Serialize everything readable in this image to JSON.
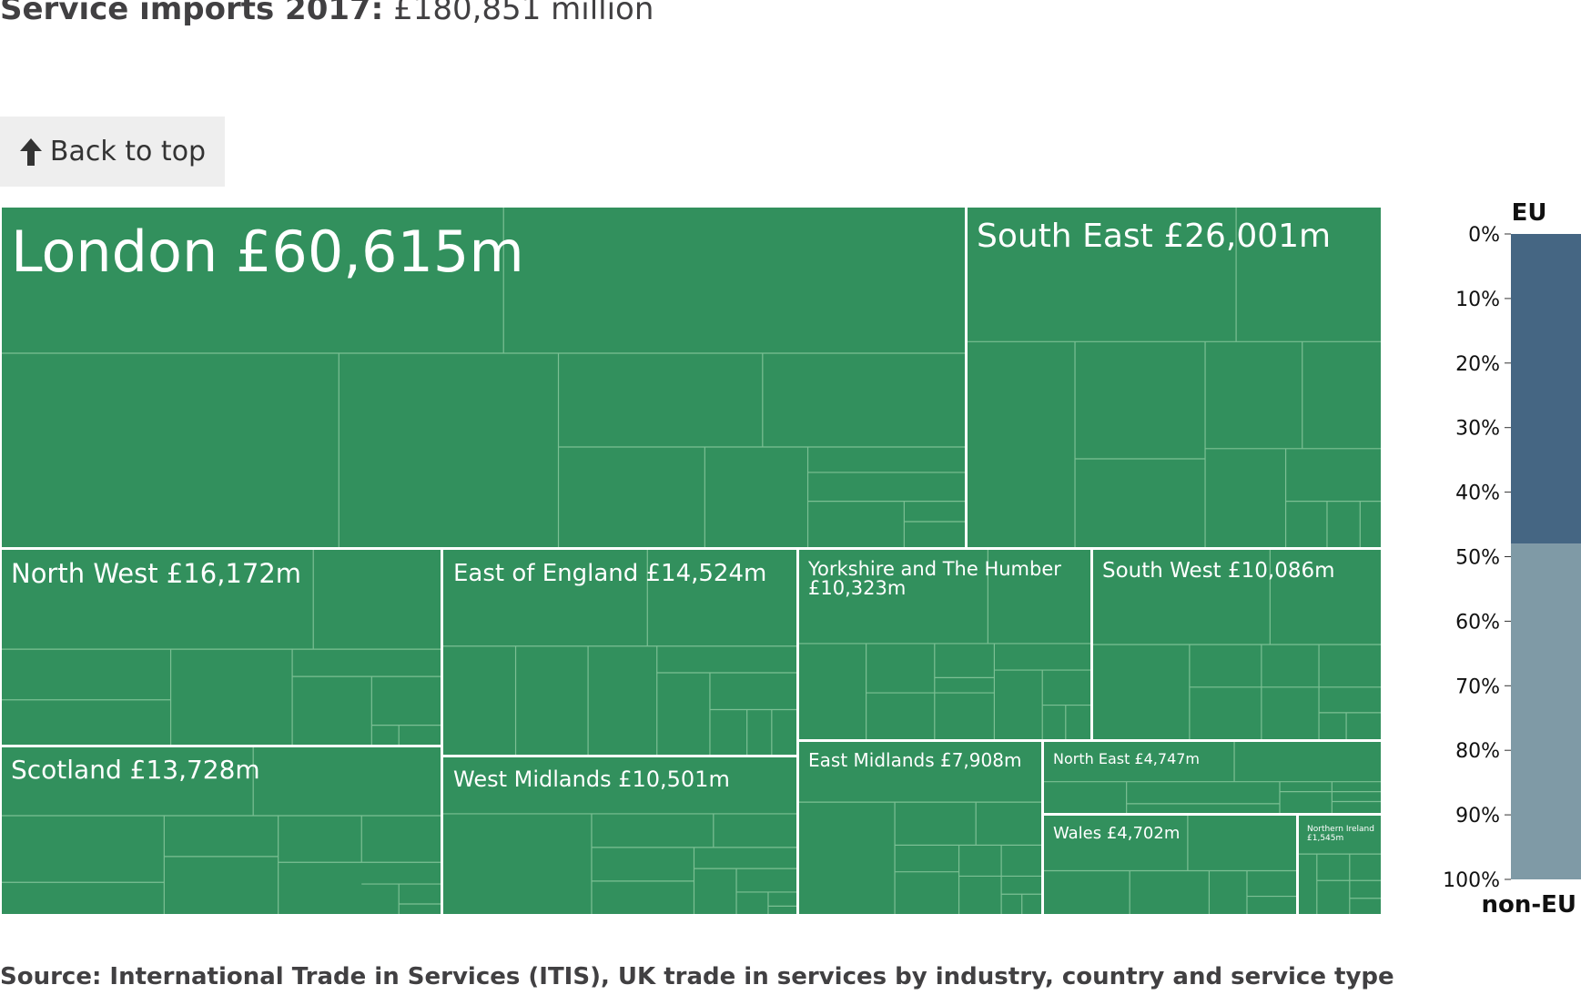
{
  "header": {
    "title_bold": "Service imports 2017:",
    "title_value": "£180,851 million"
  },
  "back_to_top": {
    "label": "Back to top",
    "icon": "arrow-up-icon"
  },
  "source": "Source: International Trade in Services (ITIS), UK trade in services by industry, country and service type",
  "colors": {
    "treemap_fill": "#32905d",
    "inner_line": "#7cbf94",
    "region_border": "#ffffff",
    "eu": "#456683",
    "non_eu": "#7f9aa6",
    "text_on_fill": "#ffffff"
  },
  "chart_data": [
    {
      "type": "treemap",
      "title": "Service imports 2017: £180,851 million",
      "unit": "£m",
      "total": 180851,
      "regions": [
        {
          "name": "London",
          "label": "London £60,615m",
          "value": 60615
        },
        {
          "name": "South East",
          "label": "South East £26,001m",
          "value": 26001
        },
        {
          "name": "North West",
          "label": "North West £16,172m",
          "value": 16172
        },
        {
          "name": "East of England",
          "label": "East of England £14,524m",
          "value": 14524
        },
        {
          "name": "Scotland",
          "label": "Scotland £13,728m",
          "value": 13728
        },
        {
          "name": "West Midlands",
          "label": "West Midlands £10,501m",
          "value": 10501
        },
        {
          "name": "Yorkshire and The Humber",
          "label_lines": [
            "Yorkshire and The Humber",
            "£10,323m"
          ],
          "value": 10323
        },
        {
          "name": "South West",
          "label": "South West £10,086m",
          "value": 10086
        },
        {
          "name": "East Midlands",
          "label": "East Midlands £7,908m",
          "value": 7908
        },
        {
          "name": "North East",
          "label": "North East £4,747m",
          "value": 4747
        },
        {
          "name": "Wales",
          "label": "Wales £4,702m",
          "value": 4702
        },
        {
          "name": "Northern Ireland",
          "label_lines": [
            "Northern Ireland",
            "£1,545m"
          ],
          "value": 1545
        }
      ]
    },
    {
      "type": "bar",
      "orientation": "vertical-stacked",
      "top_label": "EU",
      "bottom_label": "non-EU",
      "ticks": [
        "0%",
        "10%",
        "20%",
        "30%",
        "40%",
        "50%",
        "60%",
        "70%",
        "80%",
        "90%",
        "100%"
      ],
      "ylim": [
        0,
        100
      ],
      "series": [
        {
          "name": "EU",
          "values": [
            48
          ]
        },
        {
          "name": "non-EU",
          "values": [
            52
          ]
        }
      ]
    }
  ]
}
